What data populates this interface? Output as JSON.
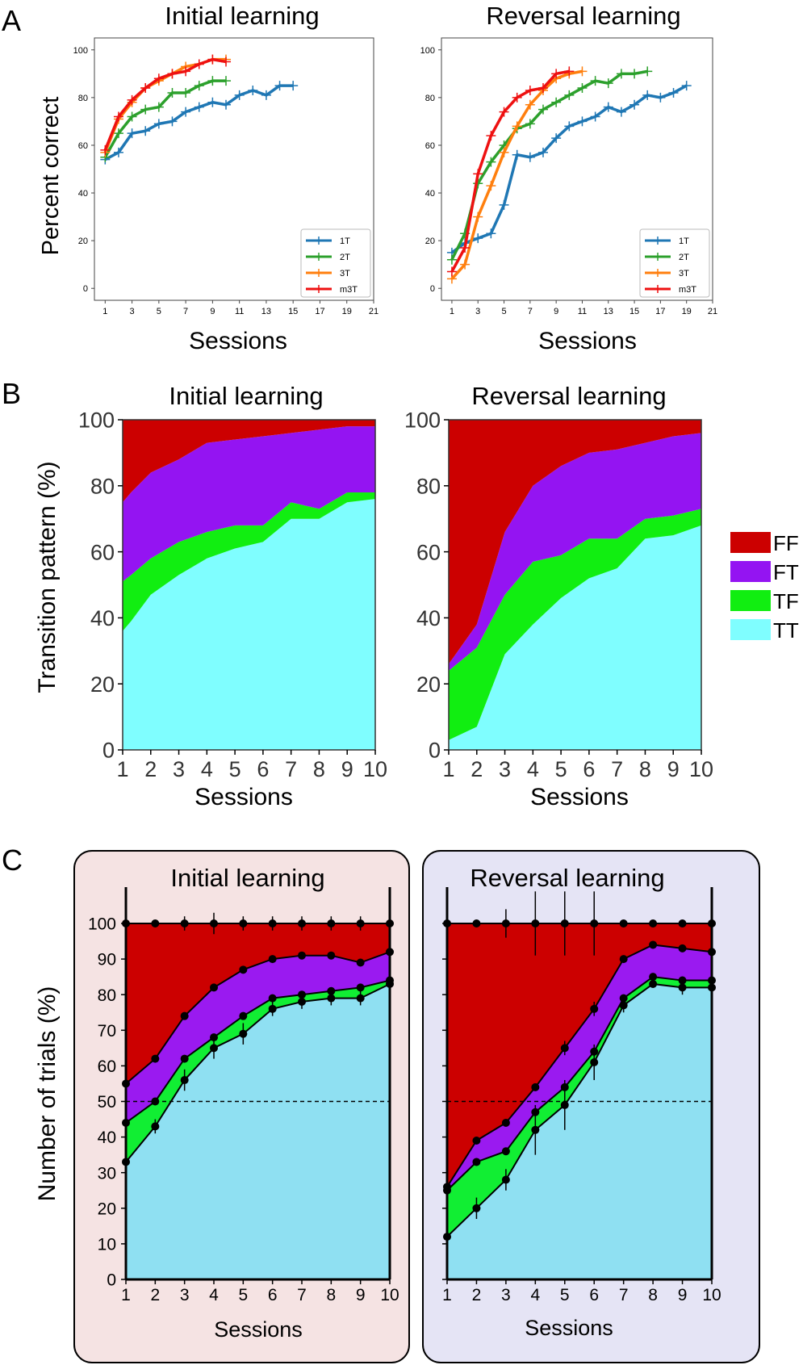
{
  "panel_letters": [
    "A",
    "B",
    "C"
  ],
  "colors": {
    "s1T": "#1f77b4",
    "s2T": "#2ca02c",
    "s3T": "#ff7f0e",
    "m3T": "#ee1111",
    "FF": "#cc0000",
    "FT": "#9414f2",
    "TF": "#11ee11",
    "TT": "#7ffeff",
    "TT_C": "#8fe0f2",
    "FT_C": "#9a1af0",
    "TF_C": "#11ee33",
    "boxInitial": "#f5e3e3",
    "boxReversal": "#e5e4f5"
  },
  "chart_data": [
    {
      "id": "A-initial",
      "type": "line",
      "title": "Initial learning",
      "xlabel": "Sessions",
      "ylabel": "Percent correct",
      "xlim": [
        0.2,
        21
      ],
      "ylim": [
        -5,
        105
      ],
      "xticks": [
        1,
        3,
        5,
        7,
        9,
        11,
        13,
        15,
        17,
        19,
        21
      ],
      "yticks": [
        0,
        20,
        40,
        60,
        80,
        100
      ],
      "legend_position": "bottom-right",
      "series": [
        {
          "name": "1T",
          "colorKey": "s1T",
          "x": [
            1,
            2,
            3,
            4,
            5,
            6,
            7,
            8,
            9,
            10,
            11,
            12,
            13,
            14,
            15
          ],
          "y": [
            54,
            57,
            65,
            66,
            69,
            70,
            74,
            76,
            78,
            77,
            81,
            83,
            81,
            85,
            85
          ]
        },
        {
          "name": "2T",
          "colorKey": "s2T",
          "x": [
            1,
            2,
            3,
            4,
            5,
            6,
            7,
            8,
            9,
            10
          ],
          "y": [
            55,
            65,
            72,
            75,
            76,
            82,
            82,
            85,
            87,
            87
          ]
        },
        {
          "name": "3T",
          "colorKey": "s3T",
          "x": [
            1,
            2,
            3,
            4,
            5,
            6,
            7,
            8,
            9,
            10
          ],
          "y": [
            57,
            71,
            78,
            84,
            87,
            90,
            93,
            94,
            96,
            96
          ]
        },
        {
          "name": "m3T",
          "colorKey": "m3T",
          "x": [
            1,
            2,
            3,
            4,
            5,
            6,
            7,
            8,
            9,
            10
          ],
          "y": [
            58,
            72,
            79,
            84,
            88,
            90,
            91,
            94,
            96,
            95
          ]
        }
      ]
    },
    {
      "id": "A-reversal",
      "type": "line",
      "title": "Reversal learning",
      "xlabel": "Sessions",
      "ylabel": "",
      "xlim": [
        0.2,
        21
      ],
      "ylim": [
        -5,
        105
      ],
      "xticks": [
        1,
        3,
        5,
        7,
        9,
        11,
        13,
        15,
        17,
        19,
        21
      ],
      "yticks": [
        0,
        20,
        40,
        60,
        80,
        100
      ],
      "legend_position": "bottom-right",
      "series": [
        {
          "name": "1T",
          "colorKey": "s1T",
          "x": [
            1,
            2,
            3,
            4,
            5,
            6,
            7,
            8,
            9,
            10,
            11,
            12,
            13,
            14,
            15,
            16,
            17,
            18,
            19
          ],
          "y": [
            15,
            19,
            21,
            23,
            35,
            56,
            55,
            57,
            63,
            68,
            70,
            72,
            76,
            74,
            77,
            81,
            80,
            82,
            85
          ]
        },
        {
          "name": "2T",
          "colorKey": "s2T",
          "x": [
            1,
            2,
            3,
            4,
            5,
            6,
            7,
            8,
            9,
            10,
            11,
            12,
            13,
            14,
            15,
            16
          ],
          "y": [
            12,
            23,
            44,
            53,
            60,
            67,
            69,
            75,
            78,
            81,
            84,
            87,
            86,
            90,
            90,
            91
          ]
        },
        {
          "name": "3T",
          "colorKey": "s3T",
          "x": [
            1,
            2,
            3,
            4,
            5,
            6,
            7,
            8,
            9,
            10,
            11
          ],
          "y": [
            4,
            10,
            30,
            43,
            57,
            68,
            77,
            83,
            88,
            90,
            91
          ]
        },
        {
          "name": "m3T",
          "colorKey": "m3T",
          "x": [
            1,
            2,
            3,
            4,
            5,
            6,
            7,
            8,
            9,
            10
          ],
          "y": [
            7,
            17,
            48,
            64,
            74,
            80,
            83,
            84,
            90,
            91
          ]
        }
      ]
    },
    {
      "id": "B-initial",
      "type": "area",
      "title": "Initial learning",
      "xlabel": "Sessions",
      "ylabel": "Transition pattern (%)",
      "xlim": [
        1,
        10
      ],
      "ylim": [
        0,
        100
      ],
      "xticks": [
        1,
        2,
        3,
        4,
        5,
        6,
        7,
        8,
        9,
        10
      ],
      "yticks": [
        0,
        20,
        40,
        60,
        80,
        100
      ],
      "categories": [
        1,
        1.3,
        2,
        3,
        4,
        5,
        6,
        7,
        8,
        9,
        10
      ],
      "series": [
        {
          "name": "TT",
          "colorKey": "TT",
          "values": [
            36,
            39,
            47,
            53,
            58,
            61,
            63,
            70,
            70,
            75,
            76
          ]
        },
        {
          "name": "TF",
          "colorKey": "TF",
          "values": [
            51,
            53,
            58,
            63,
            66,
            68,
            68,
            75,
            73,
            78,
            78
          ]
        },
        {
          "name": "FT",
          "colorKey": "FT",
          "values": [
            75,
            78,
            84,
            88,
            93,
            94,
            95,
            96,
            97,
            98,
            98
          ]
        },
        {
          "name": "FF",
          "colorKey": "FF",
          "values": [
            100,
            100,
            100,
            100,
            100,
            100,
            100,
            100,
            100,
            100,
            100
          ]
        }
      ]
    },
    {
      "id": "B-reversal",
      "type": "area",
      "title": "Reversal learning",
      "xlabel": "Sessions",
      "ylabel": "",
      "xlim": [
        1,
        10
      ],
      "ylim": [
        0,
        100
      ],
      "xticks": [
        1,
        2,
        3,
        4,
        5,
        6,
        7,
        8,
        9,
        10
      ],
      "yticks": [
        0,
        20,
        40,
        60,
        80,
        100
      ],
      "categories": [
        1,
        2,
        3,
        4,
        5,
        6,
        7,
        8,
        9,
        10
      ],
      "series": [
        {
          "name": "TT",
          "colorKey": "TT",
          "values": [
            3,
            7,
            29,
            38,
            46,
            52,
            55,
            64,
            65,
            68
          ]
        },
        {
          "name": "TF",
          "colorKey": "TF",
          "values": [
            24,
            31,
            47,
            57,
            59,
            64,
            64,
            70,
            71,
            73
          ]
        },
        {
          "name": "FT",
          "colorKey": "FT",
          "values": [
            26,
            38,
            66,
            80,
            86,
            90,
            91,
            93,
            95,
            96
          ]
        },
        {
          "name": "FF",
          "colorKey": "FF",
          "values": [
            100,
            100,
            100,
            100,
            100,
            100,
            100,
            100,
            100,
            100
          ]
        }
      ],
      "legend": [
        "FF",
        "FT",
        "TF",
        "TT"
      ]
    },
    {
      "id": "C-initial",
      "type": "area",
      "title": "Initial learning",
      "xlabel": "Sessions",
      "ylabel": "Number of trials (%)",
      "xlim": [
        1,
        10
      ],
      "ylim": [
        0,
        100
      ],
      "xticks": [
        1,
        2,
        3,
        4,
        5,
        6,
        7,
        8,
        9,
        10
      ],
      "yticks": [
        0,
        10,
        20,
        30,
        40,
        50,
        60,
        70,
        80,
        90,
        100
      ],
      "reference_line": 50,
      "categories": [
        1,
        2,
        3,
        4,
        5,
        6,
        7,
        8,
        9,
        10
      ],
      "series": [
        {
          "name": "TT",
          "colorKey": "TT_C",
          "values": [
            33,
            43,
            56,
            65,
            69,
            76,
            78,
            79,
            79,
            83
          ],
          "err": [
            0,
            2,
            3,
            3,
            3,
            2,
            2,
            2,
            2,
            1
          ]
        },
        {
          "name": "TF",
          "colorKey": "TF_C",
          "values": [
            44,
            50,
            62,
            68,
            74,
            79,
            80,
            81,
            82,
            84
          ],
          "err": [
            0,
            0,
            0,
            0,
            0,
            0,
            0,
            0,
            0,
            0
          ]
        },
        {
          "name": "FT",
          "colorKey": "FT_C",
          "values": [
            55,
            62,
            74,
            82,
            87,
            90,
            91,
            91,
            89,
            92
          ],
          "err": [
            0,
            0,
            0,
            0,
            0,
            0,
            0,
            0,
            0,
            0
          ]
        },
        {
          "name": "FF",
          "colorKey": "FF",
          "values": [
            100,
            100,
            100,
            100,
            100,
            100,
            100,
            100,
            100,
            100
          ],
          "err": [
            0,
            1,
            2,
            3,
            2,
            2,
            2,
            2,
            2,
            0
          ]
        }
      ]
    },
    {
      "id": "C-reversal",
      "type": "area",
      "title": "Reversal learning",
      "xlabel": "Sessions",
      "ylabel": "",
      "xlim": [
        1,
        10
      ],
      "ylim": [
        0,
        100
      ],
      "xticks": [
        1,
        2,
        3,
        4,
        5,
        6,
        7,
        8,
        9,
        10
      ],
      "yticks": [
        0,
        10,
        20,
        30,
        40,
        50,
        60,
        70,
        80,
        90,
        100
      ],
      "reference_line": 50,
      "categories": [
        1,
        2,
        3,
        4,
        5,
        6,
        7,
        8,
        9,
        10
      ],
      "series": [
        {
          "name": "TT",
          "colorKey": "TT_C",
          "values": [
            12,
            20,
            28,
            42,
            49,
            61,
            77,
            83,
            82,
            82
          ],
          "err": [
            0,
            3,
            3,
            7,
            7,
            5,
            2,
            1,
            2,
            2
          ]
        },
        {
          "name": "TF",
          "colorKey": "TF_C",
          "values": [
            25,
            33,
            36,
            47,
            54,
            64,
            79,
            85,
            84,
            84
          ],
          "err": [
            0,
            0,
            0,
            0,
            0,
            0,
            0,
            0,
            0,
            0
          ]
        },
        {
          "name": "FT",
          "colorKey": "FT_C",
          "values": [
            26,
            39,
            44,
            54,
            65,
            76,
            90,
            94,
            93,
            92
          ],
          "err": [
            0,
            0,
            0,
            0,
            2,
            2,
            0,
            0,
            0,
            0
          ]
        },
        {
          "name": "FF",
          "colorKey": "FF",
          "values": [
            100,
            100,
            100,
            100,
            100,
            100,
            100,
            100,
            100,
            100
          ],
          "err": [
            0,
            1,
            4,
            9,
            9,
            9,
            1,
            0,
            1,
            0
          ]
        }
      ]
    }
  ]
}
